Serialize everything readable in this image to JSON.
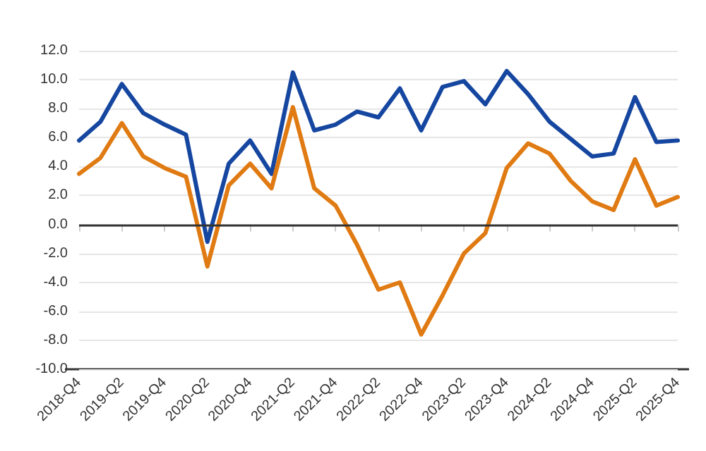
{
  "chart_data": {
    "type": "line",
    "categories": [
      "2018-Q4",
      null,
      "2019-Q2",
      null,
      "2019-Q4",
      null,
      "2020-Q2",
      null,
      "2020-Q4",
      null,
      "2021-Q2",
      null,
      "2021-Q4",
      null,
      "2022-Q2",
      null,
      "2022-Q4",
      null,
      "2023-Q2",
      null,
      "2023-Q4",
      null,
      "2024-Q2",
      null,
      "2024-Q4",
      null,
      "2025-Q2",
      null,
      "2025-Q4"
    ],
    "series": [
      {
        "color": "#1546a0",
        "values": [
          5.8,
          7.1,
          9.7,
          7.7,
          6.9,
          6.2,
          -1.2,
          4.2,
          5.8,
          3.5,
          10.5,
          6.5,
          6.9,
          7.8,
          7.4,
          9.4,
          6.5,
          9.5,
          9.9,
          8.3,
          10.6,
          9.0,
          7.1,
          5.9,
          4.7,
          4.9,
          8.8,
          5.7,
          5.8
        ]
      },
      {
        "color": "#e07a12",
        "values": [
          3.5,
          4.6,
          7.0,
          4.7,
          3.9,
          3.3,
          -2.9,
          2.7,
          4.2,
          2.5,
          8.1,
          2.5,
          1.3,
          -1.4,
          -4.5,
          -4.0,
          -7.6,
          -4.9,
          -2.0,
          -0.6,
          3.9,
          5.6,
          4.9,
          3.0,
          1.6,
          1.0,
          4.5,
          1.3,
          1.9
        ]
      }
    ],
    "ylim": [
      -10,
      12
    ],
    "yticks": [
      {
        "value": -10,
        "label": "-10.0"
      },
      {
        "value": -8,
        "label": "-8.0"
      },
      {
        "value": -6,
        "label": "-6.0"
      },
      {
        "value": -4,
        "label": "-4.0"
      },
      {
        "value": -2,
        "label": "-2.0"
      },
      {
        "value": 0,
        "label": "0.0"
      },
      {
        "value": 2,
        "label": "2.0"
      },
      {
        "value": 4,
        "label": "4.0"
      },
      {
        "value": 6,
        "label": "6.0"
      },
      {
        "value": 8,
        "label": "8.0"
      },
      {
        "value": 10,
        "label": "10.0"
      },
      {
        "value": 12,
        "label": "12.0"
      }
    ],
    "ref_lines": [
      {
        "axis": "y",
        "value": 0,
        "label": null,
        "color": "#333333"
      }
    ],
    "grid": "y",
    "marker": "none",
    "line_style": "solid"
  }
}
